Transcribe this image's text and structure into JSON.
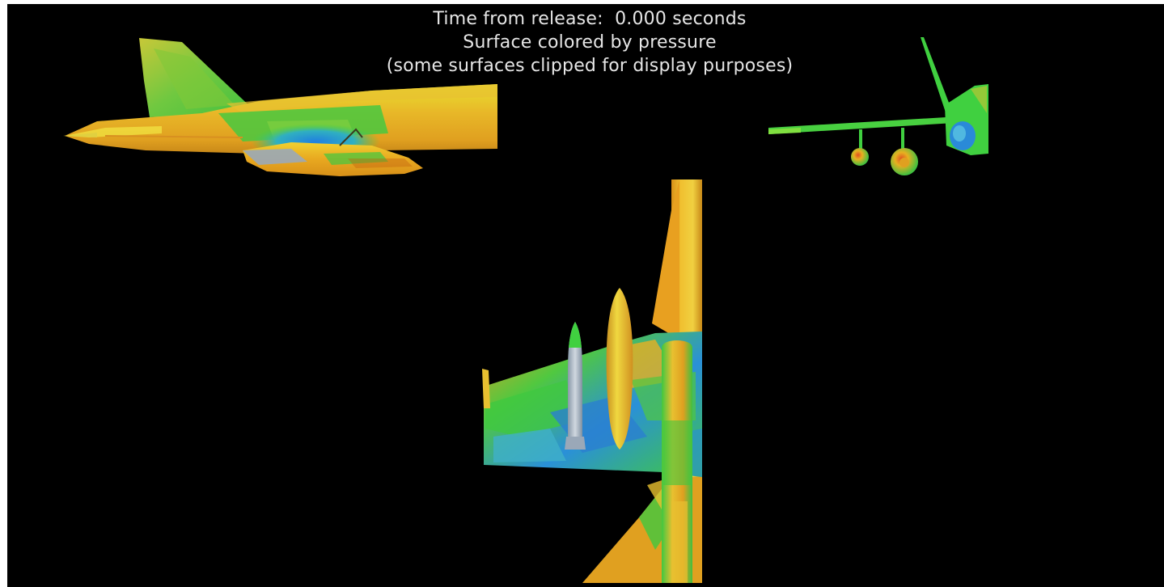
{
  "caption": {
    "line1": "Time from release:  0.000 seconds",
    "line2": "Surface colored by pressure",
    "line3": "(some surfaces clipped for display purposes)"
  },
  "colors": {
    "background": "#000000",
    "caption_text": "#e6e6e6",
    "high_pressure": "#e8a020",
    "mid_high": "#e8d020",
    "mid": "#40d040",
    "low_pressure": "#2a8ad8",
    "store_body": "#9aa8b8"
  },
  "views": [
    "side-view",
    "front-view",
    "top-view"
  ]
}
